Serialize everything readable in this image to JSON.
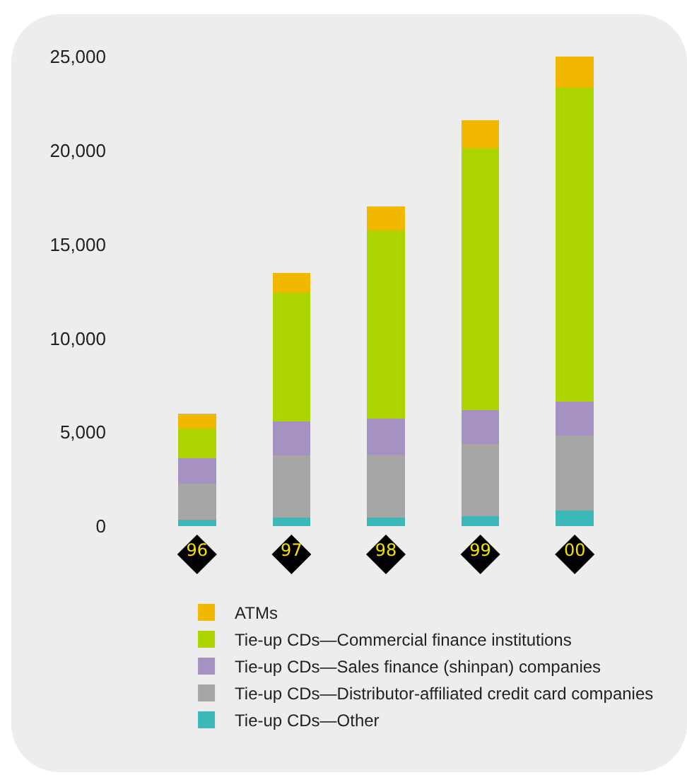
{
  "chart_data": {
    "type": "bar",
    "stacked": true,
    "categories": [
      "96",
      "97",
      "98",
      "99",
      "00"
    ],
    "series": [
      {
        "name": "Tie-up CDs—Other",
        "color": "#3cb8b8",
        "values": [
          350,
          450,
          450,
          530,
          830
        ]
      },
      {
        "name": "Tie-up CDs—Distributor-affiliated credit card companies",
        "color": "#a6a6a6",
        "values": [
          1910,
          3320,
          3370,
          3840,
          3990
        ]
      },
      {
        "name": "Tie-up CDs—Sales finance (shinpan) companies",
        "color": "#a592c2",
        "values": [
          1360,
          1810,
          1910,
          1810,
          1810
        ]
      },
      {
        "name": "Tie-up CDs—Commercial finance institutions",
        "color": "#acd400",
        "values": [
          1560,
          6830,
          10000,
          13920,
          16740
        ]
      },
      {
        "name": "ATMs",
        "color": "#f2b800",
        "values": [
          820,
          1060,
          1280,
          1510,
          1630
        ]
      }
    ],
    "ylim": [
      0,
      25000
    ],
    "yticks": [
      {
        "value": 0,
        "label": "0"
      },
      {
        "value": 5000,
        "label": "5,000"
      },
      {
        "value": 10000,
        "label": "10,000"
      },
      {
        "value": 15000,
        "label": "15,000"
      },
      {
        "value": 20000,
        "label": "20,000"
      },
      {
        "value": 25000,
        "label": "25,000"
      }
    ],
    "legend": "bottom"
  }
}
